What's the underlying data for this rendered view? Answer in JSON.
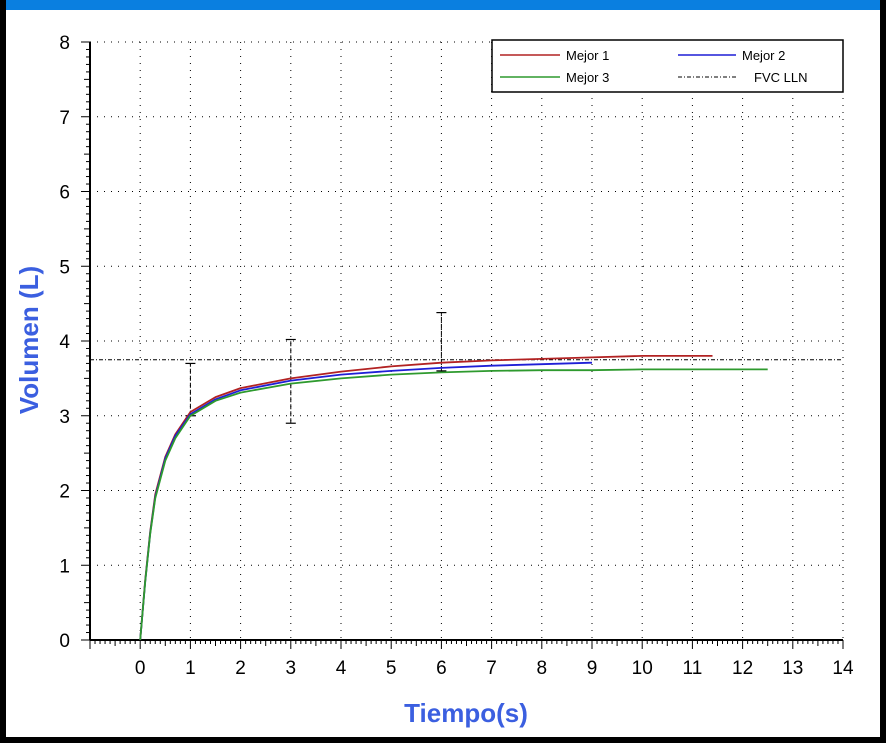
{
  "colors": {
    "frame_top": "#0a7fe0",
    "frame_side": "#000000",
    "axis_title": "#3b5fe0",
    "mejor1": "#b22222",
    "mejor2": "#1f1fd6",
    "mejor3": "#2e9a2e",
    "lln": "#000000"
  },
  "chart_data": {
    "type": "line",
    "title": "",
    "xlabel": "Tiempo(s)",
    "ylabel": "Volumen (L)",
    "xlim": [
      -1,
      14
    ],
    "ylim": [
      0,
      8
    ],
    "x_ticks": [
      "0",
      "1",
      "2",
      "3",
      "4",
      "5",
      "6",
      "7",
      "8",
      "9",
      "10",
      "11",
      "12",
      "13",
      "14"
    ],
    "y_ticks": [
      "0",
      "1",
      "2",
      "3",
      "4",
      "5",
      "6",
      "7",
      "8"
    ],
    "grid": true,
    "legend_position": "top-right",
    "series": [
      {
        "name": "Mejor 1",
        "color": "#b22222",
        "x": [
          0,
          0.1,
          0.2,
          0.3,
          0.5,
          0.7,
          1.0,
          1.5,
          2,
          3,
          4,
          5,
          6,
          7,
          8,
          9,
          10,
          11,
          11.4
        ],
        "y": [
          0,
          0.8,
          1.45,
          1.95,
          2.45,
          2.75,
          3.05,
          3.25,
          3.37,
          3.5,
          3.59,
          3.66,
          3.71,
          3.74,
          3.76,
          3.78,
          3.8,
          3.8,
          3.8
        ]
      },
      {
        "name": "Mejor 2",
        "color": "#1f1fd6",
        "x": [
          0,
          0.1,
          0.2,
          0.3,
          0.5,
          0.7,
          1.0,
          1.5,
          2,
          3,
          4,
          5,
          6,
          7,
          8,
          9
        ],
        "y": [
          0,
          0.78,
          1.43,
          1.92,
          2.43,
          2.73,
          3.02,
          3.22,
          3.34,
          3.47,
          3.55,
          3.6,
          3.64,
          3.67,
          3.69,
          3.71
        ]
      },
      {
        "name": "Mejor 3",
        "color": "#2e9a2e",
        "x": [
          0,
          0.1,
          0.2,
          0.3,
          0.5,
          0.7,
          1.0,
          1.5,
          2,
          3,
          4,
          5,
          6,
          7,
          8,
          9,
          10,
          11,
          12,
          12.5
        ],
        "y": [
          0,
          0.78,
          1.42,
          1.9,
          2.4,
          2.7,
          3.0,
          3.2,
          3.31,
          3.43,
          3.5,
          3.55,
          3.58,
          3.6,
          3.61,
          3.61,
          3.62,
          3.62,
          3.62,
          3.62
        ]
      }
    ],
    "reference_lines": [
      {
        "name": "FVC LLN",
        "y": 3.75,
        "color": "#000000",
        "style": "dash-dot"
      }
    ],
    "error_bars": [
      {
        "x": 1,
        "low": 3.0,
        "high": 3.7
      },
      {
        "x": 3,
        "low": 2.9,
        "high": 4.02
      },
      {
        "x": 6,
        "low": 3.6,
        "high": 4.38
      }
    ]
  }
}
